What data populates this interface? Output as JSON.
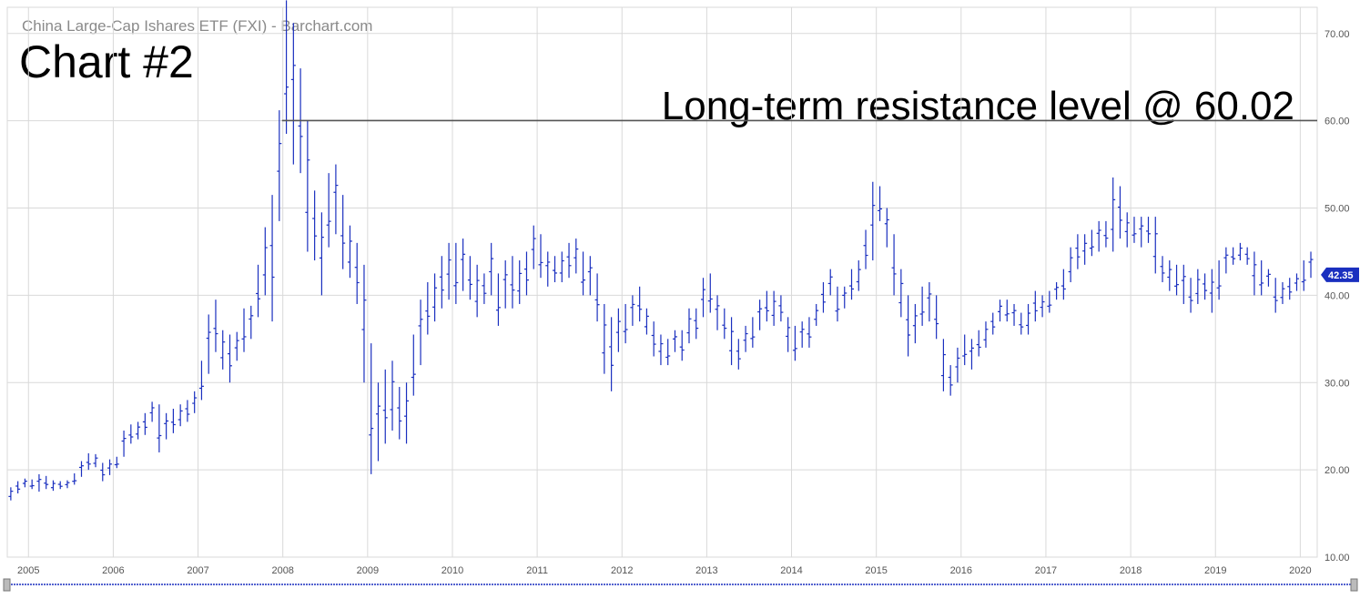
{
  "header": {
    "source_title": "China Large-Cap Ishares ETF (FXI) - Barchart.com",
    "chart_number": "Chart #2",
    "annotation": "Long-term resistance level @ 60.02"
  },
  "colors": {
    "bars": "#1a2fbf",
    "grid": "#d9d9d9",
    "resistance_line": "#555555",
    "price_badge": "#1a2fbf",
    "scrollbar": "#1a2fbf"
  },
  "chart_data": {
    "type": "ohlc-bar",
    "title": "China Large-Cap Ishares ETF (FXI) - Barchart.com",
    "interval": "monthly",
    "grid": true,
    "ylim": [
      10,
      73
    ],
    "y_ticks": [
      "10.00",
      "20.00",
      "30.00",
      "40.00",
      "50.00",
      "60.00",
      "70.00"
    ],
    "x_ticks": [
      "2005",
      "2006",
      "2007",
      "2008",
      "2009",
      "2010",
      "2011",
      "2012",
      "2013",
      "2014",
      "2015",
      "2016",
      "2017",
      "2018",
      "2019",
      "2020"
    ],
    "x_range": [
      2004.75,
      2020.2
    ],
    "resistance_level": 60.02,
    "resistance_label": "Long-term resistance level @ 60.02",
    "last_price": "42.35",
    "series": [
      {
        "start": "2004-10",
        "values": [
          [
            16.5,
            18.0
          ],
          [
            17.3,
            18.7
          ],
          [
            18.0,
            19.0
          ],
          [
            17.8,
            18.9
          ],
          [
            17.5,
            19.5
          ],
          [
            17.8,
            19.3
          ],
          [
            17.6,
            18.8
          ],
          [
            17.8,
            18.7
          ],
          [
            17.9,
            18.8
          ],
          [
            18.3,
            19.6
          ],
          [
            19.2,
            21.0
          ],
          [
            20.0,
            21.9
          ],
          [
            20.3,
            21.8
          ],
          [
            18.7,
            20.8
          ],
          [
            19.4,
            21.2
          ],
          [
            20.2,
            21.5
          ],
          [
            21.5,
            24.5
          ],
          [
            23.0,
            25.2
          ],
          [
            23.5,
            25.5
          ],
          [
            24.0,
            26.5
          ],
          [
            25.5,
            27.8
          ],
          [
            22.0,
            27.5
          ],
          [
            23.5,
            26.5
          ],
          [
            24.2,
            27.0
          ],
          [
            25.0,
            27.5
          ],
          [
            25.5,
            28.0
          ],
          [
            26.5,
            29.0
          ],
          [
            28.0,
            32.5
          ],
          [
            31.0,
            37.8
          ],
          [
            33.5,
            39.5
          ],
          [
            31.5,
            36.0
          ],
          [
            30.0,
            35.5
          ],
          [
            32.5,
            35.8
          ],
          [
            33.5,
            38.5
          ],
          [
            35.0,
            38.8
          ],
          [
            37.5,
            43.5
          ],
          [
            40.0,
            47.8
          ],
          [
            37.0,
            51.5
          ],
          [
            48.5,
            61.2
          ],
          [
            58.5,
            73.8
          ],
          [
            55.0,
            71.2
          ],
          [
            54.0,
            66.0
          ],
          [
            45.0,
            60.0
          ],
          [
            44.0,
            52.0
          ],
          [
            40.0,
            49.5
          ],
          [
            45.5,
            54.0
          ],
          [
            47.0,
            55.0
          ],
          [
            43.0,
            51.5
          ],
          [
            42.0,
            48.0
          ],
          [
            39.0,
            46.0
          ],
          [
            30.0,
            43.5
          ],
          [
            19.5,
            34.5
          ],
          [
            21.0,
            30.0
          ],
          [
            23.0,
            31.5
          ],
          [
            24.5,
            32.5
          ],
          [
            23.5,
            29.5
          ],
          [
            23.0,
            30.0
          ],
          [
            28.5,
            35.5
          ],
          [
            32.0,
            39.5
          ],
          [
            35.5,
            41.5
          ],
          [
            37.0,
            42.5
          ],
          [
            38.5,
            44.5
          ],
          [
            39.5,
            46.0
          ],
          [
            39.0,
            46.0
          ],
          [
            40.5,
            46.5
          ],
          [
            39.5,
            44.5
          ],
          [
            37.5,
            43.5
          ],
          [
            39.0,
            42.5
          ],
          [
            40.0,
            46.0
          ],
          [
            36.5,
            42.5
          ],
          [
            38.5,
            44.0
          ],
          [
            38.5,
            44.5
          ],
          [
            39.0,
            44.0
          ],
          [
            40.0,
            45.0
          ],
          [
            43.0,
            48.0
          ],
          [
            42.0,
            47.0
          ],
          [
            41.0,
            45.0
          ],
          [
            41.5,
            44.5
          ],
          [
            41.5,
            45.0
          ],
          [
            42.0,
            46.0
          ],
          [
            42.5,
            46.5
          ],
          [
            40.0,
            45.0
          ],
          [
            40.0,
            44.5
          ],
          [
            37.0,
            42.5
          ],
          [
            31.0,
            39.0
          ],
          [
            29.0,
            37.5
          ],
          [
            33.5,
            38.5
          ],
          [
            34.5,
            39.0
          ],
          [
            36.5,
            40.0
          ],
          [
            37.0,
            41.0
          ],
          [
            35.5,
            38.5
          ],
          [
            33.0,
            37.0
          ],
          [
            32.0,
            35.5
          ],
          [
            32.0,
            35.0
          ],
          [
            33.5,
            36.0
          ],
          [
            32.5,
            36.0
          ],
          [
            34.5,
            38.5
          ],
          [
            35.0,
            38.5
          ],
          [
            37.5,
            42.0
          ],
          [
            38.0,
            42.5
          ],
          [
            36.0,
            40.0
          ],
          [
            35.0,
            38.5
          ],
          [
            32.0,
            37.5
          ],
          [
            31.5,
            35.0
          ],
          [
            33.5,
            36.5
          ],
          [
            34.0,
            37.5
          ],
          [
            36.0,
            39.5
          ],
          [
            37.0,
            40.5
          ],
          [
            36.5,
            40.5
          ],
          [
            37.0,
            40.0
          ],
          [
            33.5,
            37.5
          ],
          [
            32.5,
            36.5
          ],
          [
            34.0,
            37.0
          ],
          [
            34.0,
            37.5
          ],
          [
            36.5,
            39.0
          ],
          [
            38.0,
            41.5
          ],
          [
            40.0,
            43.0
          ],
          [
            37.0,
            41.0
          ],
          [
            38.5,
            41.0
          ],
          [
            39.5,
            43.0
          ],
          [
            40.5,
            44.0
          ],
          [
            43.0,
            47.5
          ],
          [
            44.0,
            53.0
          ],
          [
            48.5,
            52.5
          ],
          [
            45.5,
            50.0
          ],
          [
            40.0,
            47.0
          ],
          [
            37.5,
            43.0
          ],
          [
            33.0,
            40.0
          ],
          [
            34.5,
            39.0
          ],
          [
            36.5,
            41.0
          ],
          [
            37.0,
            41.5
          ],
          [
            35.0,
            40.0
          ],
          [
            29.0,
            35.0
          ],
          [
            28.5,
            32.0
          ],
          [
            30.0,
            34.0
          ],
          [
            32.0,
            35.5
          ],
          [
            31.5,
            35.0
          ],
          [
            33.0,
            36.0
          ],
          [
            34.0,
            37.0
          ],
          [
            35.5,
            38.0
          ],
          [
            37.0,
            39.5
          ],
          [
            37.0,
            39.5
          ],
          [
            36.5,
            39.0
          ],
          [
            35.5,
            38.0
          ],
          [
            35.5,
            39.0
          ],
          [
            37.0,
            40.5
          ],
          [
            37.5,
            40.0
          ],
          [
            38.0,
            40.5
          ],
          [
            39.5,
            41.5
          ],
          [
            39.5,
            43.0
          ],
          [
            41.5,
            45.5
          ],
          [
            43.0,
            47.0
          ],
          [
            43.5,
            47.0
          ],
          [
            44.5,
            47.5
          ],
          [
            45.0,
            48.5
          ],
          [
            45.5,
            48.5
          ],
          [
            45.0,
            53.5
          ],
          [
            46.5,
            52.5
          ],
          [
            45.5,
            49.5
          ],
          [
            46.0,
            49.0
          ],
          [
            45.5,
            49.0
          ],
          [
            46.0,
            49.0
          ],
          [
            42.5,
            49.0
          ],
          [
            41.5,
            44.5
          ],
          [
            40.5,
            44.0
          ],
          [
            40.0,
            43.5
          ],
          [
            39.0,
            43.5
          ],
          [
            38.0,
            42.0
          ],
          [
            39.0,
            43.0
          ],
          [
            39.5,
            42.5
          ],
          [
            38.0,
            43.0
          ],
          [
            39.5,
            44.0
          ],
          [
            42.5,
            45.5
          ],
          [
            43.5,
            45.5
          ],
          [
            44.0,
            46.0
          ],
          [
            43.5,
            45.5
          ],
          [
            40.0,
            45.0
          ],
          [
            40.0,
            44.0
          ],
          [
            41.0,
            43.0
          ],
          [
            38.0,
            42.0
          ],
          [
            39.0,
            41.5
          ],
          [
            39.5,
            42.0
          ],
          [
            40.5,
            42.5
          ],
          [
            40.5,
            44.0
          ],
          [
            42.0,
            45.0
          ]
        ]
      }
    ]
  }
}
